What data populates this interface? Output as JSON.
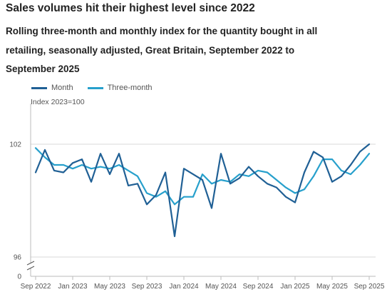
{
  "title": "Sales volumes hit their highest level since 2022",
  "subtitle": "Rolling three-month and monthly index for the quantity bought in all retailing, seasonally adjusted, Great Britain, September 2022 to September 2025",
  "chart_data": {
    "type": "line",
    "ylabel": "Index 2023=100",
    "xlabel": "",
    "ylim": [
      96,
      102
    ],
    "y_axis_break": true,
    "y_ticks": [
      {
        "value": 102,
        "label": "102"
      },
      {
        "value": 96,
        "label": "96"
      }
    ],
    "y_zero_label": "0",
    "x_tick_labels": [
      "Sep 2022",
      "Jan 2023",
      "May 2023",
      "Sep 2023",
      "Jan 2024",
      "May 2024",
      "Sep 2024",
      "Jan 2025",
      "May 2025",
      "Sep 2025"
    ],
    "x_tick_indices": [
      0,
      4,
      8,
      12,
      16,
      20,
      24,
      28,
      32,
      36
    ],
    "x": [
      "Sep 2022",
      "Oct 2022",
      "Nov 2022",
      "Dec 2022",
      "Jan 2023",
      "Feb 2023",
      "Mar 2023",
      "Apr 2023",
      "May 2023",
      "Jun 2023",
      "Jul 2023",
      "Aug 2023",
      "Sep 2023",
      "Oct 2023",
      "Nov 2023",
      "Dec 2023",
      "Jan 2024",
      "Feb 2024",
      "Mar 2024",
      "Apr 2024",
      "May 2024",
      "Jun 2024",
      "Jul 2024",
      "Aug 2024",
      "Sep 2024",
      "Oct 2024",
      "Nov 2024",
      "Dec 2024",
      "Jan 2025",
      "Feb 2025",
      "Mar 2025",
      "Apr 2025",
      "May 2025",
      "Jun 2025",
      "Jul 2025",
      "Aug 2025",
      "Sep 2025"
    ],
    "series": [
      {
        "name": "Month",
        "color": "#206095",
        "values": [
          100.5,
          101.7,
          100.6,
          100.5,
          101.0,
          101.2,
          100.0,
          101.5,
          100.4,
          101.5,
          99.8,
          99.9,
          98.8,
          99.3,
          100.5,
          97.1,
          100.7,
          100.4,
          100.1,
          98.6,
          101.5,
          99.9,
          100.2,
          100.8,
          100.3,
          99.9,
          99.7,
          99.2,
          98.9,
          100.5,
          101.6,
          101.3,
          100.0,
          100.3,
          100.9,
          101.6,
          102.0
        ]
      },
      {
        "name": "Three-month",
        "color": "#27a0cc",
        "values": [
          101.8,
          101.3,
          100.9,
          100.9,
          100.7,
          100.9,
          100.7,
          100.8,
          100.7,
          100.9,
          100.6,
          100.3,
          99.4,
          99.2,
          99.5,
          98.8,
          99.2,
          99.2,
          100.4,
          99.9,
          100.1,
          100.0,
          100.4,
          100.3,
          100.6,
          100.5,
          100.1,
          99.7,
          99.4,
          99.6,
          100.3,
          101.2,
          101.2,
          100.6,
          100.4,
          100.9,
          101.5
        ]
      }
    ]
  }
}
